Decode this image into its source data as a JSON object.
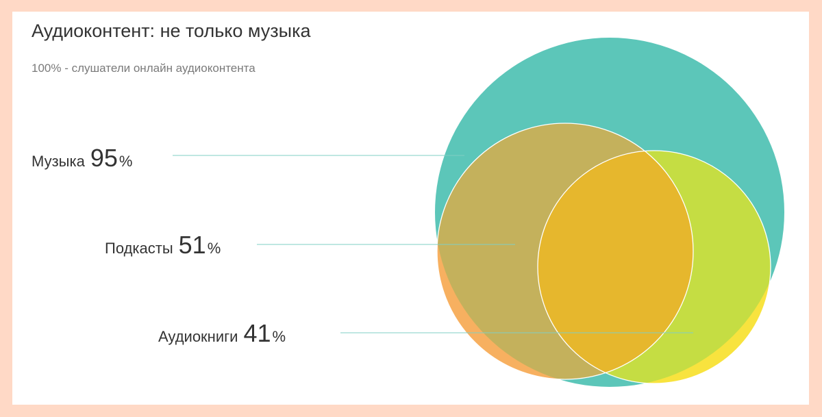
{
  "title": "Аудиоконтент: не только музыка",
  "subtitle": "100% - слушатели онлайн аудиоконтента",
  "chart_data": {
    "type": "venn",
    "title": "Аудиоконтент: не только музыка",
    "subtitle": "100% - слушатели онлайн аудиоконтента",
    "series": [
      {
        "name": "Музыка",
        "value": 95,
        "unit": "%",
        "color": "#5cc6b9"
      },
      {
        "name": "Подкасты",
        "value": 51,
        "unit": "%",
        "color": "#f7b060"
      },
      {
        "name": "Аудиокниги",
        "value": 41,
        "unit": "%",
        "color": "#f8e33e"
      }
    ],
    "overlap_colors": {
      "music_podcasts": "#c4b15c",
      "music_audiobooks": "#c5dd43",
      "all": "#e6b72d"
    },
    "leader_line_color": "#7fcfc4"
  }
}
